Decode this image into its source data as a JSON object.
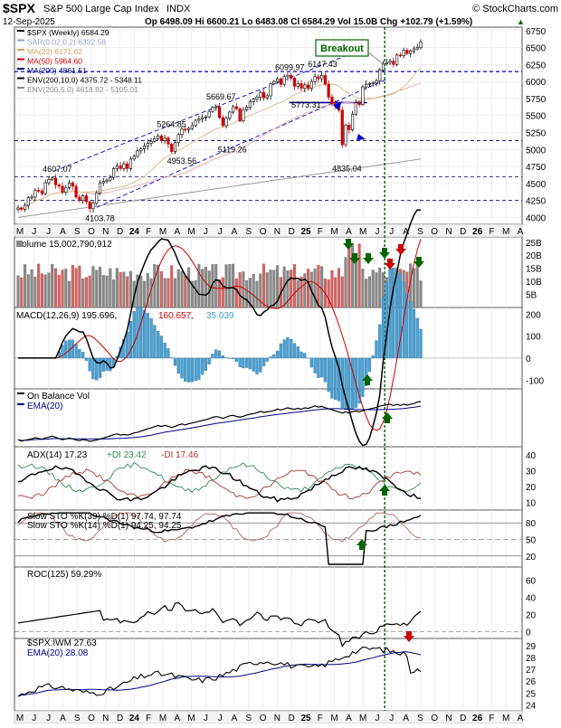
{
  "header": {
    "symbol": "$SPX",
    "name": "S&P 500 Large Cap Index",
    "exchange": "INDX",
    "brand": "© StockCharts.com",
    "date": "12-Sep-2025",
    "ohlc": "Op 6498.09  Hi 6600.21  Lo 6483.08  Cl 6584.29  Vol 15.0B  Chg +102.79 (+1.59%)",
    "chg_marker": "▲"
  },
  "months": [
    "M",
    "J",
    "J",
    "A",
    "S",
    "O",
    "N",
    "D",
    "24",
    "F",
    "M",
    "A",
    "M",
    "J",
    "J",
    "A",
    "S",
    "O",
    "N",
    "D",
    "25",
    "F",
    "M",
    "A",
    "M",
    "J",
    "J",
    "A",
    "S",
    "O",
    "N",
    "D",
    "26",
    "F",
    "M",
    "A"
  ],
  "colors": {
    "price": "#000000",
    "sar": "#9aa0c8",
    "ma20": "#d8a060",
    "ma50": "#cc0000",
    "ma200": "#00008b",
    "env200_10": "#000000",
    "env200_5": "#888888",
    "up_bar": "#888888",
    "down_bar": "#cc6666",
    "signal": "#cc0000",
    "macd_hist": "#4a9fd0",
    "pos_di": "#2e8b57",
    "neg_di": "#b03030",
    "arrow_up": "#006400",
    "arrow_down": "#cc0000",
    "breakout_box": "#006400",
    "vline": "#006400"
  },
  "chart_data": [
    {
      "type": "line",
      "title": "$SPX (Weekly) 6584.29",
      "legend": [
        {
          "label": "$SPX (Weekly) 6584.29",
          "color": "#000000"
        },
        {
          "label": "SAR(0.02,0.2) 6332.58",
          "color": "#9aa0c8"
        },
        {
          "label": "MA(20) 6171.62",
          "color": "#d8a060"
        },
        {
          "label": "MA(50) 5964.60",
          "color": "#cc0000"
        },
        {
          "label": "MA(200) 4861.51",
          "color": "#00008b"
        },
        {
          "label": "ENV(200,10.0) 4375.72 - 5348.11",
          "color": "#000000"
        },
        {
          "label": "ENV(200,5.0) 4618.82 - 5105.01",
          "color": "#888888"
        }
      ],
      "y_ticks": [
        "6750",
        "6500",
        "6250",
        "6000",
        "5750",
        "5500",
        "5250",
        "5000",
        "4750",
        "4500",
        "4250",
        "4000"
      ],
      "ylim": [
        3900,
        6800
      ],
      "x_start": "2023-05-05",
      "x_end": "2025-09-12",
      "close": [
        4140,
        4120,
        4180,
        4290,
        4300,
        4400,
        4390,
        4350,
        4510,
        4560,
        4580,
        4480,
        4460,
        4370,
        4440,
        4510,
        4460,
        4300,
        4250,
        4320,
        4230,
        4130,
        4210,
        4360,
        4510,
        4530,
        4550,
        4590,
        4720,
        4760,
        4720,
        4790,
        4720,
        4860,
        4900,
        4980,
        5010,
        5050,
        5090,
        5120,
        5160,
        5200,
        5130,
        5170,
        5080,
        4970,
        5100,
        5220,
        5300,
        5290,
        5310,
        5350,
        5430,
        5450,
        5470,
        5480,
        5560,
        5620,
        5630,
        5470,
        5350,
        5460,
        5550,
        5630,
        5600,
        5420,
        5580,
        5620,
        5700,
        5740,
        5770,
        5840,
        5760,
        5790,
        5970,
        6000,
        6040,
        5960,
        6070,
        6090,
        6050,
        5930,
        5970,
        5900,
        5950,
        5900,
        6000,
        6070,
        6040,
        6090,
        5960,
        5770,
        5670,
        5640,
        5580,
        5070,
        5360,
        5290,
        5520,
        5690,
        5660,
        5920,
        5960,
        5970,
        5980,
        6010,
        6170,
        6260,
        6280,
        6300,
        6250,
        6390,
        6380,
        6460,
        6410,
        6450,
        6480,
        6500,
        6584.29
      ],
      "annotations": [
        {
          "text": "4607.07",
          "x": "2023-07-28",
          "y": 4607
        },
        {
          "text": "4103.78",
          "x": "2023-10-27",
          "y": 4104
        },
        {
          "text": "5264.85",
          "x": "2024-03-28",
          "y": 5265
        },
        {
          "text": "4953.56",
          "x": "2024-04-19",
          "y": 4954
        },
        {
          "text": "5669.67",
          "x": "2024-07-12",
          "y": 5670
        },
        {
          "text": "5119.26",
          "x": "2024-08-05",
          "y": 5119
        },
        {
          "text": "6099.97",
          "x": "2024-12-06",
          "y": 6100
        },
        {
          "text": "6147.43",
          "x": "2025-02-14",
          "y": 6147
        },
        {
          "text": "5773.31",
          "x": "2025-01-10",
          "y": 5773
        },
        {
          "text": "4835.04",
          "x": "2025-04-07",
          "y": 4835
        },
        {
          "text": "Breakout",
          "x": "2025-06-27",
          "y": 6147
        }
      ],
      "support_lines": [
        6147,
        5130,
        4600,
        4250
      ]
    },
    {
      "type": "bar",
      "title": "Volume 15,002,790,912",
      "y_ticks": [
        "25B",
        "20B",
        "15B",
        "10B",
        "5B"
      ],
      "ylim": [
        0,
        27
      ]
    },
    {
      "type": "line",
      "title": "MACD(12,26,9) 195.696, 160.657, 35.039",
      "legend": [
        {
          "label": "MACD(12,26,9) 195.696",
          "color": "#000000"
        },
        {
          "label": "160.657",
          "color": "#cc0000"
        },
        {
          "label": "35.039",
          "color": "#4a9fd0"
        }
      ],
      "y_ticks": [
        "200",
        "100",
        "0",
        "-100"
      ],
      "ylim": [
        -140,
        230
      ]
    },
    {
      "type": "line",
      "title": "On Balance Vol",
      "legend": [
        {
          "label": "EMA(20)",
          "color": "#00008b"
        }
      ],
      "y_ticks": []
    },
    {
      "type": "line",
      "title": "ADX(14) 17.23 +DI 23.42 -DI 17.46",
      "legend": [
        {
          "label": "ADX(14) 17.23",
          "color": "#000000"
        },
        {
          "label": "+DI 23.42",
          "color": "#2e8b57"
        },
        {
          "label": "-DI 17.46",
          "color": "#b03030"
        }
      ],
      "y_ticks": [
        "40",
        "30",
        "20",
        "10"
      ],
      "ylim": [
        5,
        45
      ]
    },
    {
      "type": "line",
      "title": "Slow STO %K(39) %D(1) 97.74, 97.74",
      "legend": [
        {
          "label": "Slow STO %K(39) %D(1) 97.74, 97.74",
          "color": "#000000"
        },
        {
          "label": "Slow STO %K(14) %D(1) 94.25, 94.25",
          "color": "#b06060"
        }
      ],
      "y_ticks": [
        "80",
        "50",
        "20"
      ],
      "ylim": [
        0,
        100
      ]
    },
    {
      "type": "line",
      "title": "ROC(125) 59.29%",
      "y_ticks": [
        "60",
        "40",
        "20",
        "0"
      ],
      "ylim": [
        -8,
        75
      ]
    },
    {
      "type": "line",
      "title": "$SPX:IWM 27.63",
      "legend": [
        {
          "label": "$SPX:IWM 27.63",
          "color": "#000000"
        },
        {
          "label": "EMA(20) 28.08",
          "color": "#00008b"
        }
      ],
      "y_ticks": [
        "29",
        "28",
        "27",
        "26",
        "25",
        "24"
      ],
      "ylim": [
        23.5,
        29.6
      ]
    }
  ]
}
